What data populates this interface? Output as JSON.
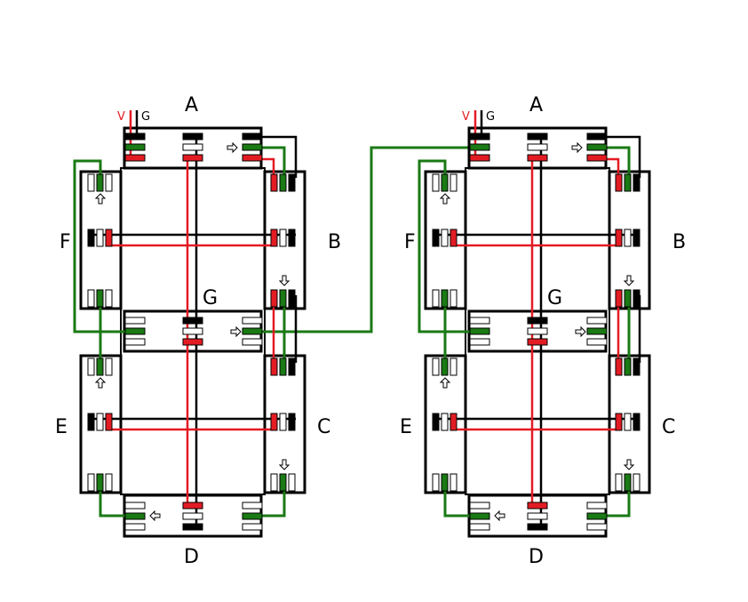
{
  "colors": {
    "vcc": "#e31b23",
    "gnd": "#000000",
    "data": "#1a7a14",
    "outline": "#000000",
    "pin": "#ffffff"
  },
  "signals": {
    "v": "V",
    "g": "G"
  },
  "left_diagram": {
    "segments": {
      "a": "A",
      "b": "B",
      "c": "C",
      "d": "D",
      "e": "E",
      "f": "F",
      "g": "G"
    }
  },
  "right_diagram": {
    "segments": {
      "a": "A",
      "b": "B",
      "c": "C",
      "d": "D",
      "e": "E",
      "f": "F",
      "g": "G"
    }
  },
  "icons": {
    "arrow_right": "arrow-right-icon",
    "arrow_left": "arrow-left-icon",
    "arrow_up": "arrow-up-icon",
    "arrow_down": "arrow-down-icon"
  }
}
